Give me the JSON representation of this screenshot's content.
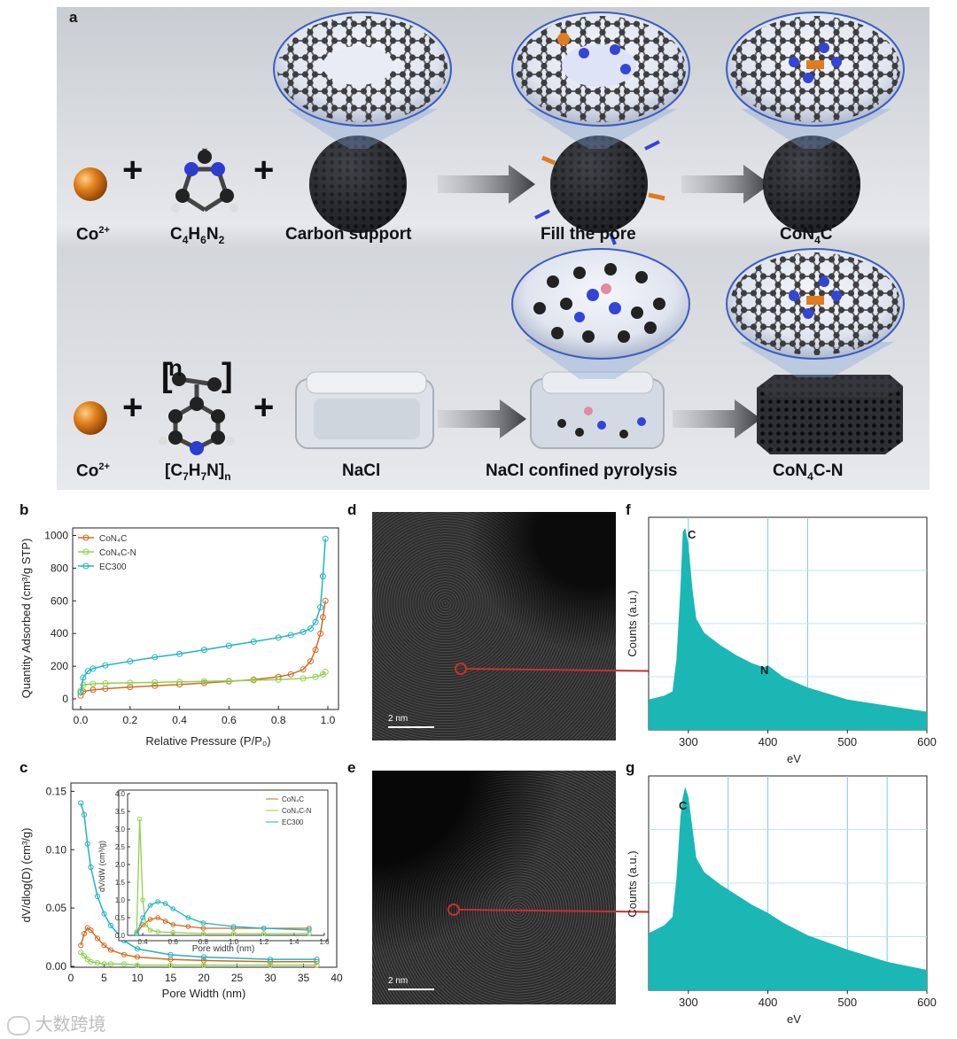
{
  "panel_letters": {
    "a": "a",
    "b": "b",
    "c": "c",
    "d": "d",
    "e": "e",
    "f": "f",
    "g": "g"
  },
  "scheme": {
    "row1": {
      "co": "Co",
      "co_sup": "2+",
      "ligand": "C",
      "ligand_sub1": "4",
      "ligand_h": "H",
      "ligand_sub2": "6",
      "ligand_n": "N",
      "ligand_sub3": "2",
      "support": "Carbon support",
      "step": "Fill the pore",
      "product": "CoN",
      "product_sub": "4",
      "product_end": "C"
    },
    "row2": {
      "co": "Co",
      "co_sup": "2+",
      "polymer": "[C",
      "polymer_sub1": "7",
      "polymer_h": "H",
      "polymer_sub2": "7",
      "polymer_n": "N]",
      "polymer_sub3": "n",
      "polymer_bracket_n": "n",
      "salt": "NaCl",
      "step": "NaCl confined pyrolysis",
      "product": "CoN",
      "product_sub": "4",
      "product_end": "C-N"
    }
  },
  "charts": {
    "b": {
      "ylabel": "Quantity Adsorbed (cm³/g STP)",
      "xlabel": "Relative Pressure (P/P₀)",
      "legend": [
        "CoN₄C",
        "CoN₄C-N",
        "EC300"
      ]
    },
    "c": {
      "ylabel": "dV/dlog(D) (cm³/g)",
      "xlabel": "Pore Width (nm)",
      "inset_ylabel": "dV/dW (cm³/g)",
      "inset_xlabel": "Pore width (nm)",
      "legend": [
        "CoN₄C",
        "CoN₄C-N",
        "EC300"
      ]
    },
    "f": {
      "ylabel": "Counts (a.u.)",
      "xlabel": "eV",
      "peak1": "C",
      "peak2": "N"
    },
    "g": {
      "ylabel": "Counts (a.u.)",
      "xlabel": "eV",
      "peak1": "C"
    }
  },
  "scalebar": {
    "d": "2 nm",
    "e": "2 nm"
  },
  "watermark": "大数跨境",
  "colors": {
    "orange": "#d2691e",
    "green": "#8fd14f",
    "cyan": "#1fb3c4",
    "eels": "#1ab7b5",
    "arrow": "#c9302c"
  },
  "chart_data": [
    {
      "type": "line",
      "id": "b",
      "ylim": [
        0,
        1000
      ],
      "xlim": [
        0,
        1.0
      ],
      "series": [
        {
          "name": "CoN₄C",
          "x": [
            0,
            0.01,
            0.05,
            0.1,
            0.2,
            0.3,
            0.4,
            0.5,
            0.6,
            0.7,
            0.8,
            0.85,
            0.9,
            0.93,
            0.95,
            0.97,
            0.98,
            0.99
          ],
          "y": [
            20,
            45,
            55,
            62,
            72,
            80,
            88,
            97,
            107,
            118,
            135,
            150,
            180,
            230,
            300,
            400,
            500,
            600
          ]
        },
        {
          "name": "CoN₄C-N",
          "x": [
            0,
            0.01,
            0.05,
            0.1,
            0.2,
            0.3,
            0.4,
            0.5,
            0.6,
            0.7,
            0.8,
            0.9,
            0.95,
            0.98,
            0.99
          ],
          "y": [
            50,
            85,
            92,
            95,
            98,
            101,
            104,
            107,
            110,
            114,
            118,
            125,
            135,
            150,
            165
          ]
        },
        {
          "name": "EC300",
          "x": [
            0,
            0.01,
            0.03,
            0.05,
            0.1,
            0.2,
            0.3,
            0.4,
            0.5,
            0.6,
            0.7,
            0.8,
            0.85,
            0.9,
            0.93,
            0.95,
            0.97,
            0.98,
            0.99
          ],
          "y": [
            40,
            130,
            170,
            185,
            205,
            230,
            255,
            275,
            300,
            325,
            350,
            375,
            390,
            410,
            430,
            470,
            560,
            750,
            980
          ]
        }
      ]
    },
    {
      "type": "line",
      "id": "c",
      "xlim": [
        0,
        40
      ],
      "ylim": [
        0,
        0.15
      ],
      "series": [
        {
          "name": "CoN₄C",
          "x": [
            1.5,
            2,
            2.5,
            3,
            4,
            5,
            6,
            8,
            10,
            15,
            20,
            30,
            37
          ],
          "y": [
            0.018,
            0.028,
            0.033,
            0.031,
            0.024,
            0.018,
            0.014,
            0.01,
            0.008,
            0.006,
            0.005,
            0.004,
            0.004
          ]
        },
        {
          "name": "CoN₄C-N",
          "x": [
            1.5,
            2,
            2.5,
            3,
            4,
            5,
            6,
            8,
            10,
            15,
            20,
            30,
            37
          ],
          "y": [
            0.012,
            0.009,
            0.006,
            0.004,
            0.003,
            0.002,
            0.002,
            0.002,
            0.001,
            0.001,
            0.001,
            0.001,
            0.001
          ]
        },
        {
          "name": "EC300",
          "x": [
            1.5,
            2,
            2.5,
            3,
            4,
            5,
            6,
            8,
            10,
            15,
            20,
            30,
            37
          ],
          "y": [
            0.14,
            0.13,
            0.105,
            0.085,
            0.06,
            0.045,
            0.035,
            0.022,
            0.015,
            0.01,
            0.008,
            0.006,
            0.006
          ]
        }
      ],
      "inset": {
        "xlim": [
          0.4,
          1.6
        ],
        "ylim": [
          0,
          4.0
        ],
        "series": [
          {
            "name": "CoN₄C",
            "x": [
              0.36,
              0.4,
              0.45,
              0.5,
              0.55,
              0.6,
              0.7,
              0.8,
              1.0,
              1.2,
              1.5
            ],
            "y": [
              0.05,
              0.3,
              0.45,
              0.5,
              0.4,
              0.3,
              0.25,
              0.2,
              0.2,
              0.2,
              0.2
            ]
          },
          {
            "name": "CoN₄C-N",
            "x": [
              0.36,
              0.38,
              0.4,
              0.42,
              0.45,
              0.5,
              0.6,
              0.8,
              1.0,
              1.2,
              1.5
            ],
            "y": [
              0.1,
              3.28,
              1.0,
              0.3,
              0.15,
              0.1,
              0.08,
              0.05,
              0.05,
              0.05,
              0.05
            ]
          },
          {
            "name": "EC300",
            "x": [
              0.36,
              0.4,
              0.45,
              0.5,
              0.55,
              0.6,
              0.7,
              0.8,
              1.0,
              1.2,
              1.5
            ],
            "y": [
              0.05,
              0.5,
              0.85,
              0.95,
              0.9,
              0.75,
              0.5,
              0.35,
              0.25,
              0.2,
              0.15
            ]
          }
        ]
      }
    },
    {
      "type": "area",
      "id": "f",
      "xlim": [
        250,
        600
      ],
      "xticks": [
        300,
        400,
        500,
        600
      ],
      "x": [
        250,
        270,
        280,
        285,
        290,
        293,
        296,
        300,
        305,
        310,
        320,
        340,
        360,
        380,
        395,
        400,
        420,
        450,
        500,
        550,
        600
      ],
      "y": [
        0.15,
        0.17,
        0.19,
        0.35,
        0.7,
        0.98,
        1.0,
        0.92,
        0.7,
        0.55,
        0.48,
        0.42,
        0.37,
        0.33,
        0.31,
        0.32,
        0.26,
        0.21,
        0.15,
        0.12,
        0.09
      ]
    },
    {
      "type": "area",
      "id": "g",
      "xlim": [
        250,
        600
      ],
      "xticks": [
        300,
        400,
        500,
        600
      ],
      "x": [
        250,
        270,
        280,
        285,
        290,
        293,
        296,
        300,
        305,
        310,
        320,
        340,
        360,
        380,
        400,
        420,
        450,
        500,
        550,
        600
      ],
      "y": [
        0.28,
        0.32,
        0.36,
        0.55,
        0.85,
        0.95,
        1.0,
        0.95,
        0.8,
        0.65,
        0.58,
        0.52,
        0.47,
        0.42,
        0.38,
        0.33,
        0.27,
        0.2,
        0.14,
        0.1
      ]
    }
  ]
}
